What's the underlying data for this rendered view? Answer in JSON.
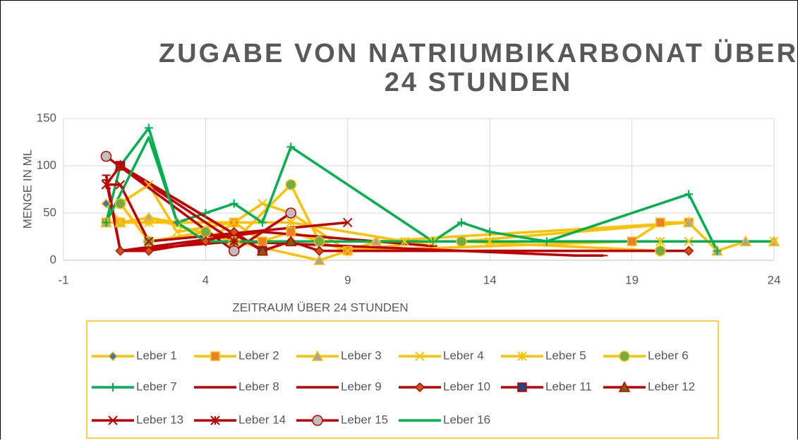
{
  "chart_data": {
    "type": "scatter",
    "title": [
      "ZUGABE VON NATRIUMBIKARBONAT ÜBER",
      "24 STUNDEN"
    ],
    "x_label": "ZEITRAUM ÜBER 24 STUNDEN",
    "y_label": "MENGE IN ML",
    "xlim": [
      -1,
      24
    ],
    "xticks": [
      -1,
      4,
      9,
      14,
      19,
      24
    ],
    "ylim": [
      0,
      150
    ],
    "yticks": [
      0,
      50,
      100,
      150
    ],
    "grid": true,
    "legend": "bottom",
    "series": [
      {
        "name": "Leber 1",
        "color": "#ffc000",
        "marker": "diamond",
        "marker_color": "#4472c4",
        "x": [
          0.5,
          1,
          2,
          3,
          4,
          5,
          6,
          7,
          8,
          9,
          10,
          13,
          21
        ],
        "values": [
          60,
          40,
          45,
          40,
          20,
          40,
          20,
          20,
          20,
          10,
          20,
          20,
          40
        ]
      },
      {
        "name": "Leber 2",
        "color": "#ffc000",
        "marker": "square",
        "marker_color": "#ed7d31",
        "x": [
          0.5,
          1,
          5,
          6,
          7,
          9,
          19,
          20,
          21
        ],
        "values": [
          40,
          40,
          40,
          20,
          30,
          10,
          20,
          40,
          40
        ]
      },
      {
        "name": "Leber 3",
        "color": "#ffc000",
        "marker": "triangle",
        "marker_color": "#a5a5a5",
        "x": [
          0.5,
          1,
          2,
          5,
          8,
          10,
          21,
          22,
          23,
          24
        ],
        "values": [
          40,
          40,
          45,
          20,
          0,
          20,
          40,
          10,
          20,
          20
        ]
      },
      {
        "name": "Leber 4",
        "color": "#ffc000",
        "marker": "x",
        "marker_color": "#ffc000",
        "x": [
          1,
          2,
          3,
          5,
          6,
          7,
          9,
          12,
          21,
          24
        ],
        "values": [
          60,
          80,
          30,
          40,
          60,
          50,
          10,
          20,
          20,
          20
        ]
      },
      {
        "name": "Leber 5",
        "color": "#ffc000",
        "marker": "star",
        "marker_color": "#ffc000",
        "x": [
          1,
          2,
          5,
          7,
          11,
          14,
          20
        ],
        "values": [
          40,
          40,
          40,
          40,
          20,
          20,
          20
        ]
      },
      {
        "name": "Leber 6",
        "color": "#ffc000",
        "marker": "circle",
        "marker_color": "#70ad47",
        "x": [
          1,
          2,
          4,
          5,
          7,
          8,
          13,
          20
        ],
        "values": [
          60,
          20,
          30,
          20,
          80,
          20,
          20,
          10
        ]
      },
      {
        "name": "Leber 7",
        "color": "#00b050",
        "marker": "plus",
        "marker_color": "#00b050",
        "x": [
          0.5,
          1,
          2,
          3,
          4,
          5,
          6,
          7,
          12,
          13,
          14,
          16,
          21,
          22
        ],
        "values": [
          40,
          100,
          140,
          40,
          50,
          60,
          40,
          120,
          20,
          40,
          30,
          20,
          70,
          10
        ]
      },
      {
        "name": "Leber 8",
        "color": "#c00000",
        "marker": "dash",
        "marker_color": "#c00000",
        "x": [
          0.5,
          1,
          5,
          17,
          18
        ],
        "values": [
          90,
          10,
          20,
          5,
          5
        ]
      },
      {
        "name": "Leber 9",
        "color": "#c00000",
        "marker": "dash",
        "marker_color": "#c00000",
        "x": [
          0.5,
          1,
          6,
          12
        ],
        "values": [
          85,
          10,
          30,
          15
        ]
      },
      {
        "name": "Leber 10",
        "color": "#c00000",
        "marker": "diamond",
        "marker_color": "#c55a11",
        "x": [
          1,
          2,
          4,
          5,
          6,
          7,
          8,
          21
        ],
        "values": [
          10,
          10,
          20,
          30,
          10,
          20,
          10,
          10
        ]
      },
      {
        "name": "Leber 11",
        "color": "#c00000",
        "marker": "square",
        "marker_color": "#264478",
        "x": [
          1,
          6
        ],
        "values": [
          100,
          10
        ]
      },
      {
        "name": "Leber 12",
        "color": "#c00000",
        "marker": "triangle",
        "marker_color": "#7f6000",
        "x": [
          1,
          6,
          7
        ],
        "values": [
          100,
          10,
          20
        ]
      },
      {
        "name": "Leber 13",
        "color": "#c00000",
        "marker": "x",
        "marker_color": "#c00000",
        "x": [
          0.5,
          1,
          2,
          9
        ],
        "values": [
          80,
          80,
          20,
          40
        ]
      },
      {
        "name": "Leber 14",
        "color": "#c00000",
        "marker": "star",
        "marker_color": "#c00000",
        "x": [
          0.5,
          1,
          5
        ],
        "values": [
          80,
          100,
          20
        ]
      },
      {
        "name": "Leber 15",
        "color": "#c00000",
        "marker": "circle",
        "marker_color": "#bfbfbf",
        "x": [
          0.5,
          5,
          7
        ],
        "values": [
          110,
          10,
          50
        ]
      },
      {
        "name": "Leber 16",
        "color": "#00b050",
        "marker": "none",
        "marker_color": "#00b050",
        "x": [
          0.5,
          2,
          3,
          4,
          16,
          24
        ],
        "values": [
          40,
          130,
          40,
          20,
          20,
          20
        ]
      }
    ]
  }
}
